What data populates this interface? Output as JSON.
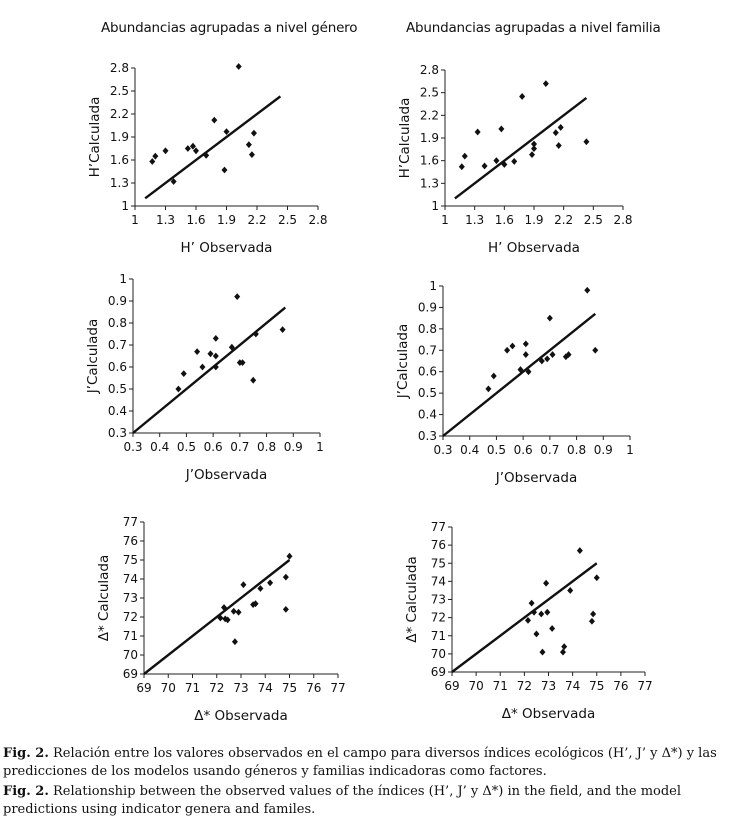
{
  "titles": {
    "left": "Abundancias agrupadas a nivel género",
    "right": "Abundancias agrupadas a nivel familia"
  },
  "captions": {
    "es_label": "Fig. 2.",
    "es_text": " Relación entre los valores observados en el campo para diversos índices ecológicos (H’, J’ y Δ*) y las predicciones de los modelos usando géneros y familias indicadoras como factores.",
    "en_label": "Fig. 2.",
    "en_text": " Relationship between the observed values of the índices (H’, J’ y Δ*) in the field, and the model predictions using indicator genera and familes."
  },
  "chart_data": [
    {
      "type": "scatter",
      "panel": "H-genero",
      "xlabel": "H’ Observada",
      "ylabel": "H’Calculada",
      "xlim": [
        1,
        2.8
      ],
      "ylim": [
        1,
        2.8
      ],
      "xticks": [
        "1",
        "1.3",
        "1.6",
        "1.9",
        "2.2",
        "2.5",
        "2.8"
      ],
      "yticks": [
        "1",
        "1.3",
        "1.6",
        "1.9",
        "2.2",
        "2.5",
        "2.8"
      ],
      "points": [
        [
          1.17,
          1.58
        ],
        [
          1.2,
          1.65
        ],
        [
          1.3,
          1.72
        ],
        [
          1.38,
          1.32
        ],
        [
          1.52,
          1.75
        ],
        [
          1.57,
          1.78
        ],
        [
          1.6,
          1.72
        ],
        [
          1.7,
          1.66
        ],
        [
          1.78,
          2.12
        ],
        [
          1.88,
          1.47
        ],
        [
          1.9,
          1.97
        ],
        [
          2.02,
          2.82
        ],
        [
          2.12,
          1.8
        ],
        [
          2.15,
          1.67
        ],
        [
          2.17,
          1.95
        ]
      ],
      "fit": [
        [
          1.1,
          1.1
        ],
        [
          2.43,
          2.43
        ]
      ]
    },
    {
      "type": "scatter",
      "panel": "H-familia",
      "xlabel": "H’ Observada",
      "ylabel": "H’Calculada",
      "xlim": [
        1,
        2.8
      ],
      "ylim": [
        1,
        2.8
      ],
      "xticks": [
        "1",
        "1.3",
        "1.6",
        "1.9",
        "2.2",
        "2.5",
        "2.8"
      ],
      "yticks": [
        "1",
        "1.3",
        "1.6",
        "1.9",
        "2.2",
        "2.5",
        "2.8"
      ],
      "points": [
        [
          1.17,
          1.52
        ],
        [
          1.2,
          1.66
        ],
        [
          1.33,
          1.98
        ],
        [
          1.4,
          1.53
        ],
        [
          1.52,
          1.6
        ],
        [
          1.57,
          2.02
        ],
        [
          1.6,
          1.55
        ],
        [
          1.7,
          1.59
        ],
        [
          1.78,
          2.45
        ],
        [
          1.88,
          1.68
        ],
        [
          1.9,
          1.76
        ],
        [
          1.9,
          1.82
        ],
        [
          2.02,
          2.62
        ],
        [
          2.12,
          1.97
        ],
        [
          2.15,
          1.8
        ],
        [
          2.17,
          2.04
        ],
        [
          2.43,
          1.85
        ]
      ],
      "fit": [
        [
          1.1,
          1.1
        ],
        [
          2.43,
          2.43
        ]
      ]
    },
    {
      "type": "scatter",
      "panel": "J-genero",
      "xlabel": "J’Observada",
      "ylabel": "J’Calculada",
      "xlim": [
        0.3,
        1
      ],
      "ylim": [
        0.3,
        1
      ],
      "xticks": [
        "0.3",
        "0.4",
        "0.5",
        "0.6",
        "0.7",
        "0.8",
        "0.9",
        "1"
      ],
      "yticks": [
        "0.3",
        "0.4",
        "0.5",
        "0.6",
        "0.7",
        "0.8",
        "0.9",
        "1"
      ],
      "points": [
        [
          0.47,
          0.5
        ],
        [
          0.49,
          0.57
        ],
        [
          0.54,
          0.67
        ],
        [
          0.56,
          0.6
        ],
        [
          0.59,
          0.66
        ],
        [
          0.61,
          0.73
        ],
        [
          0.61,
          0.6
        ],
        [
          0.61,
          0.65
        ],
        [
          0.67,
          0.69
        ],
        [
          0.69,
          0.92
        ],
        [
          0.7,
          0.62
        ],
        [
          0.71,
          0.62
        ],
        [
          0.75,
          0.54
        ],
        [
          0.76,
          0.75
        ],
        [
          0.86,
          0.77
        ]
      ],
      "fit": [
        [
          0.3,
          0.3
        ],
        [
          0.87,
          0.87
        ]
      ]
    },
    {
      "type": "scatter",
      "panel": "J-familia",
      "xlabel": "J’Observada",
      "ylabel": "J’Calculada",
      "xlim": [
        0.3,
        1
      ],
      "ylim": [
        0.3,
        1
      ],
      "xticks": [
        "0.3",
        "0.4",
        "0.5",
        "0.6",
        "0.7",
        "0.8",
        "0.9",
        "1"
      ],
      "yticks": [
        "0.3",
        "0.4",
        "0.5",
        "0.6",
        "0.7",
        "0.8",
        "0.9",
        "1"
      ],
      "points": [
        [
          0.47,
          0.52
        ],
        [
          0.49,
          0.58
        ],
        [
          0.54,
          0.7
        ],
        [
          0.56,
          0.72
        ],
        [
          0.59,
          0.61
        ],
        [
          0.61,
          0.73
        ],
        [
          0.61,
          0.68
        ],
        [
          0.62,
          0.6
        ],
        [
          0.67,
          0.65
        ],
        [
          0.69,
          0.66
        ],
        [
          0.7,
          0.85
        ],
        [
          0.71,
          0.68
        ],
        [
          0.76,
          0.67
        ],
        [
          0.77,
          0.68
        ],
        [
          0.84,
          0.98
        ],
        [
          0.87,
          0.7
        ]
      ],
      "fit": [
        [
          0.3,
          0.3
        ],
        [
          0.87,
          0.87
        ]
      ]
    },
    {
      "type": "scatter",
      "panel": "D-genero",
      "xlabel": "Δ* Observada",
      "ylabel": "Δ* Calculada",
      "xlim": [
        69,
        77
      ],
      "ylim": [
        69,
        77
      ],
      "xticks": [
        "69",
        "70",
        "71",
        "72",
        "73",
        "74",
        "75",
        "76",
        "77"
      ],
      "yticks": [
        "69",
        "70",
        "71",
        "72",
        "73",
        "74",
        "75",
        "76",
        "77"
      ],
      "points": [
        [
          72.15,
          71.95
        ],
        [
          72.3,
          72.5
        ],
        [
          72.35,
          71.9
        ],
        [
          72.45,
          71.85
        ],
        [
          72.7,
          72.3
        ],
        [
          72.75,
          70.7
        ],
        [
          72.9,
          72.25
        ],
        [
          73.1,
          73.7
        ],
        [
          73.5,
          72.65
        ],
        [
          73.6,
          72.7
        ],
        [
          73.8,
          73.5
        ],
        [
          74.2,
          73.8
        ],
        [
          74.85,
          72.4
        ],
        [
          74.85,
          74.1
        ],
        [
          75.0,
          75.2
        ]
      ],
      "fit": [
        [
          69,
          69
        ],
        [
          75,
          75
        ]
      ]
    },
    {
      "type": "scatter",
      "panel": "D-familia",
      "xlabel": "Δ* Observada",
      "ylabel": "Δ* Calculada",
      "xlim": [
        69,
        77
      ],
      "ylim": [
        69,
        77
      ],
      "xticks": [
        "69",
        "70",
        "71",
        "72",
        "73",
        "74",
        "75",
        "76",
        "77"
      ],
      "yticks": [
        "69",
        "70",
        "71",
        "72",
        "73",
        "74",
        "75",
        "76",
        "77"
      ],
      "points": [
        [
          72.15,
          71.85
        ],
        [
          72.3,
          72.8
        ],
        [
          72.4,
          72.3
        ],
        [
          72.5,
          71.1
        ],
        [
          72.7,
          72.2
        ],
        [
          72.75,
          70.1
        ],
        [
          72.9,
          73.9
        ],
        [
          72.95,
          72.3
        ],
        [
          73.15,
          71.4
        ],
        [
          73.6,
          70.1
        ],
        [
          73.65,
          70.4
        ],
        [
          73.9,
          73.5
        ],
        [
          74.3,
          75.7
        ],
        [
          74.8,
          71.8
        ],
        [
          74.85,
          72.2
        ],
        [
          75.0,
          74.2
        ]
      ],
      "fit": [
        [
          69,
          69
        ],
        [
          75,
          75
        ]
      ]
    }
  ]
}
